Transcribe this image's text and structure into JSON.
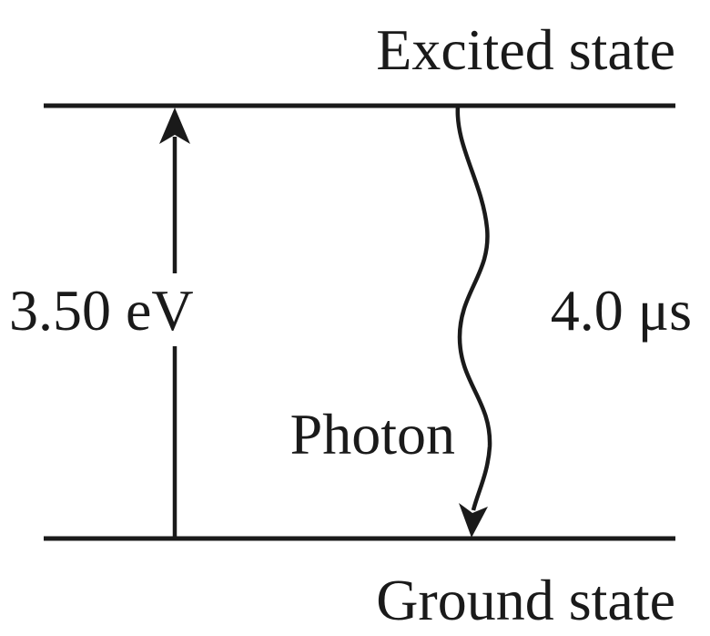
{
  "levels": {
    "excited_label": "Excited state",
    "ground_label": "Ground state"
  },
  "transition": {
    "energy_label": "3.50 eV",
    "lifetime_label": "4.0 μs",
    "photon_label": "Photon"
  },
  "colors": {
    "ink": "#1a1a1a",
    "background": "#ffffff"
  }
}
